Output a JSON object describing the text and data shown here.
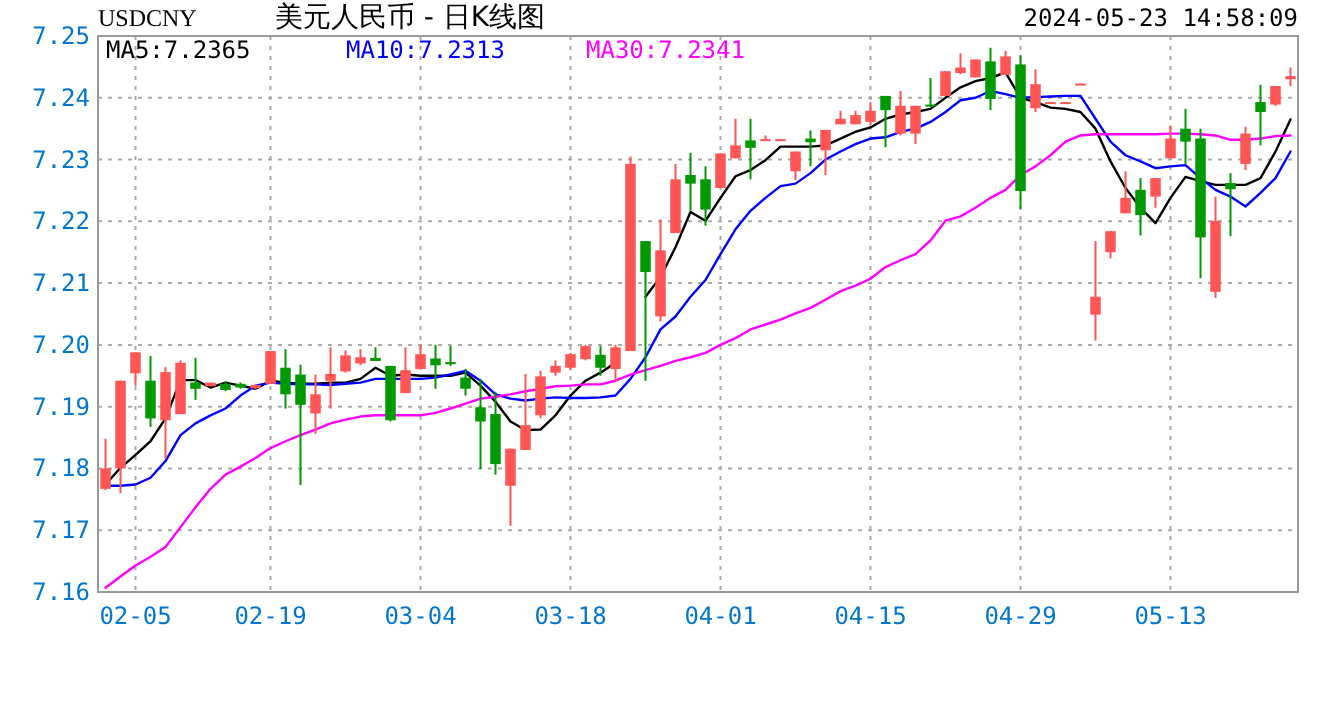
{
  "chart_data": {
    "type": "candlestick",
    "title": "美元人民币 - 日K线图",
    "subtitle": "USDCNY",
    "annotations": [
      "2024-05-23 14:58:09"
    ],
    "categories": [
      null,
      null,
      "02-05",
      null,
      null,
      null,
      null,
      null,
      null,
      null,
      null,
      "02-19",
      null,
      null,
      null,
      null,
      null,
      null,
      null,
      null,
      null,
      "03-04",
      null,
      null,
      null,
      null,
      null,
      null,
      null,
      null,
      null,
      "03-18",
      null,
      null,
      null,
      null,
      null,
      null,
      null,
      null,
      null,
      "04-01",
      null,
      null,
      null,
      null,
      null,
      null,
      null,
      null,
      null,
      "04-15",
      null,
      null,
      null,
      null,
      null,
      null,
      null,
      null,
      null,
      "04-29",
      null,
      null,
      null,
      null,
      null,
      null,
      null,
      null,
      null,
      "05-13",
      null,
      null,
      null,
      null,
      null,
      null,
      null,
      null
    ],
    "ohlc": [
      [
        7.1767,
        7.1848,
        7.1765,
        7.18
      ],
      [
        7.18,
        7.1942,
        7.176,
        7.1942
      ],
      [
        7.1954,
        7.1988,
        7.1934,
        7.1988
      ],
      [
        7.1942,
        7.1982,
        7.1867,
        7.1881
      ],
      [
        7.1878,
        7.1964,
        7.1816,
        7.1956
      ],
      [
        7.1888,
        7.1975,
        7.1888,
        7.1971
      ],
      [
        7.1939,
        7.1979,
        7.1911,
        7.1929
      ],
      [
        7.1933,
        7.1939,
        7.1933,
        7.1939
      ],
      [
        7.1937,
        7.1941,
        7.1925,
        7.1927
      ],
      [
        7.1937,
        7.1939,
        7.1929,
        7.1931
      ],
      [
        7.193,
        7.1937,
        7.1928,
        7.1935
      ],
      [
        7.1937,
        7.199,
        7.1937,
        7.199
      ],
      [
        7.1963,
        7.1993,
        7.1897,
        7.192
      ],
      [
        7.1952,
        7.1968,
        7.1773,
        7.1903
      ],
      [
        7.1889,
        7.1952,
        7.1856,
        7.192
      ],
      [
        7.1942,
        7.1996,
        7.1897,
        7.1953
      ],
      [
        7.1957,
        7.1991,
        7.1955,
        7.1983
      ],
      [
        7.197,
        7.1993,
        7.1967,
        7.198
      ],
      [
        7.1979,
        7.1996,
        7.1974,
        7.1974
      ],
      [
        7.1966,
        7.1966,
        7.1876,
        7.1878
      ],
      [
        7.1922,
        7.1996,
        7.1922,
        7.1959
      ],
      [
        7.1961,
        7.2,
        7.1961,
        7.1985
      ],
      [
        7.1978,
        7.2,
        7.1929,
        7.1967
      ],
      [
        7.1972,
        7.1998,
        7.1966,
        7.197
      ],
      [
        7.1947,
        7.1961,
        7.1918,
        7.1929
      ],
      [
        7.1899,
        7.1945,
        7.1799,
        7.1876
      ],
      [
        7.1888,
        7.1924,
        7.179,
        7.1807
      ],
      [
        7.1772,
        7.1832,
        7.1707,
        7.1832
      ],
      [
        7.183,
        7.1953,
        7.183,
        7.187
      ],
      [
        7.1886,
        7.1958,
        7.1881,
        7.1949
      ],
      [
        7.1955,
        7.1975,
        7.195,
        7.1966
      ],
      [
        7.1963,
        7.1987,
        7.1959,
        7.1985
      ],
      [
        7.1977,
        7.2,
        7.1975,
        7.1998
      ],
      [
        7.1984,
        7.1998,
        7.195,
        7.1963
      ],
      [
        7.1961,
        7.2,
        7.1942,
        7.1996
      ],
      [
        7.199,
        7.2305,
        7.199,
        7.2293
      ],
      [
        7.2168,
        7.2168,
        7.1942,
        7.2118
      ],
      [
        7.2046,
        7.2203,
        7.2038,
        7.2153
      ],
      [
        7.2181,
        7.2293,
        7.2181,
        7.2268
      ],
      [
        7.2275,
        7.2311,
        7.2217,
        7.2261
      ],
      [
        7.2268,
        7.2289,
        7.2193,
        7.2219
      ],
      [
        7.2254,
        7.231,
        7.2254,
        7.231
      ],
      [
        7.2302,
        7.2366,
        7.2302,
        7.2323
      ],
      [
        7.2331,
        7.2366,
        7.2268,
        7.2319
      ],
      [
        7.2331,
        7.2339,
        7.2331,
        7.2333
      ],
      [
        7.2331,
        7.2333,
        7.2331,
        7.2333
      ],
      [
        7.2281,
        7.2313,
        7.2267,
        7.2313
      ],
      [
        7.2334,
        7.2347,
        7.2289,
        7.2328
      ],
      [
        7.2315,
        7.2348,
        7.2275,
        7.2348
      ],
      [
        7.2357,
        7.2379,
        7.2357,
        7.2366
      ],
      [
        7.2357,
        7.2379,
        7.2357,
        7.2372
      ],
      [
        7.2361,
        7.2393,
        7.2355,
        7.2379
      ],
      [
        7.2403,
        7.2403,
        7.232,
        7.238
      ],
      [
        7.2342,
        7.2411,
        7.2339,
        7.2387
      ],
      [
        7.2342,
        7.2387,
        7.2325,
        7.2387
      ],
      [
        7.2389,
        7.2432,
        7.2385,
        7.2386
      ],
      [
        7.2403,
        7.2443,
        7.2403,
        7.2443
      ],
      [
        7.244,
        7.2472,
        7.2438,
        7.2449
      ],
      [
        7.2433,
        7.2462,
        7.2433,
        7.2462
      ],
      [
        7.2459,
        7.2481,
        7.238,
        7.2398
      ],
      [
        7.2437,
        7.2476,
        7.2437,
        7.2467
      ],
      [
        7.2454,
        7.2469,
        7.222,
        7.2249
      ],
      [
        7.2383,
        7.2446,
        7.2377,
        7.2422
      ],
      [
        7.2393,
        7.2393,
        7.2393,
        7.2393
      ],
      [
        7.2393,
        7.2393,
        7.2393,
        7.2393
      ],
      [
        7.2421,
        7.2423,
        7.2421,
        7.2423
      ],
      [
        7.2049,
        7.2168,
        7.2007,
        7.2078
      ],
      [
        7.215,
        7.2184,
        7.214,
        7.2184
      ],
      [
        7.2213,
        7.2281,
        7.2213,
        7.2238
      ],
      [
        7.2251,
        7.227,
        7.2177,
        7.221
      ],
      [
        7.224,
        7.227,
        7.2222,
        7.227
      ],
      [
        7.2302,
        7.2355,
        7.2302,
        7.2334
      ],
      [
        7.235,
        7.2382,
        7.2293,
        7.2329
      ],
      [
        7.2334,
        7.235,
        7.2108,
        7.2174
      ],
      [
        7.2086,
        7.224,
        7.2076,
        7.2201
      ],
      [
        7.2262,
        7.2278,
        7.2176,
        7.2252
      ],
      [
        7.2293,
        7.2353,
        7.2283,
        7.2342
      ],
      [
        7.2393,
        7.2421,
        7.2323,
        7.2377
      ],
      [
        7.2389,
        7.2419,
        7.2387,
        7.2419
      ],
      [
        7.243,
        7.2449,
        7.2419,
        7.2435
      ]
    ],
    "colors": [
      "#ff5555",
      "#ff5555",
      "#ff5555",
      "#009900",
      "#ff5555",
      "#ff5555",
      "#009900",
      "#ff5555",
      "#009900",
      "#009900",
      "#ff5555",
      "#ff5555",
      "#009900",
      "#009900",
      "#ff5555",
      "#ff5555",
      "#ff5555",
      "#ff5555",
      "#009900",
      "#009900",
      "#ff5555",
      "#ff5555",
      "#009900",
      "#009900",
      "#009900",
      "#009900",
      "#009900",
      "#ff5555",
      "#ff5555",
      "#ff5555",
      "#ff5555",
      "#ff5555",
      "#ff5555",
      "#009900",
      "#ff5555",
      "#ff5555",
      "#009900",
      "#ff5555",
      "#ff5555",
      "#009900",
      "#009900",
      "#ff5555",
      "#ff5555",
      "#009900",
      "#ff5555",
      "#ff5555",
      "#ff5555",
      "#009900",
      "#ff5555",
      "#ff5555",
      "#ff5555",
      "#ff5555",
      "#009900",
      "#ff5555",
      "#ff5555",
      "#009900",
      "#ff5555",
      "#ff5555",
      "#ff5555",
      "#009900",
      "#ff5555",
      "#009900",
      "#ff5555",
      "#ff5555",
      "#ff5555",
      "#ff5555",
      "#ff5555",
      "#ff5555",
      "#ff5555",
      "#009900",
      "#ff5555",
      "#ff5555",
      "#009900",
      "#009900",
      "#ff5555",
      "#009900",
      "#ff5555",
      "#009900",
      "#ff5555",
      "#ff5555"
    ],
    "series": [
      {
        "name": "MA5:7.2365",
        "type": "line",
        "color": "#000000",
        "values": [
          7.1774,
          7.1801,
          7.1822,
          7.1844,
          7.1881,
          7.1943,
          7.1943,
          7.1931,
          7.1939,
          7.1934,
          7.1929,
          7.1942,
          7.1939,
          7.1937,
          7.1937,
          7.1939,
          7.1939,
          7.1945,
          7.1963,
          7.195,
          7.1952,
          7.195,
          7.195,
          7.195,
          7.1955,
          7.1934,
          7.1908,
          7.1876,
          7.1862,
          7.1863,
          7.1886,
          7.1918,
          7.1942,
          7.1955,
          7.1971,
          null,
          7.2078,
          7.211,
          7.2158,
          7.2215,
          7.2201,
          7.2238,
          7.2273,
          7.2283,
          7.2299,
          7.2321,
          7.2321,
          7.2321,
          7.2323,
          7.2334,
          7.2345,
          7.2352,
          7.2366,
          7.2373,
          7.2377,
          7.2382,
          7.24,
          7.2417,
          7.2427,
          7.2432,
          7.2441,
          7.24,
          7.2393,
          7.2384,
          7.2382,
          7.2377,
          7.235,
          7.2297,
          7.2254,
          7.2222,
          7.2197,
          7.2238,
          7.2272,
          7.2265,
          7.2259,
          7.2259,
          7.2259,
          7.227,
          7.2313,
          7.2365
        ]
      },
      {
        "name": "MA10:7.2313",
        "type": "line",
        "color": "#0000ff",
        "values": [
          7.1772,
          7.1772,
          7.1774,
          7.1785,
          7.1812,
          7.1854,
          7.1873,
          7.1886,
          7.1897,
          7.1918,
          7.1934,
          7.1939,
          7.1937,
          7.1936,
          7.1936,
          7.1935,
          7.1937,
          7.1939,
          7.1945,
          7.1945,
          7.1945,
          7.1945,
          7.1947,
          7.1952,
          7.1958,
          7.1942,
          7.192,
          7.1913,
          7.191,
          7.1913,
          7.1915,
          7.1914,
          7.1914,
          7.1915,
          7.1918,
          7.1945,
          7.198,
          7.2025,
          7.2046,
          7.2078,
          7.2105,
          7.2147,
          7.2187,
          7.2217,
          7.2238,
          7.2257,
          7.2261,
          7.2278,
          7.23,
          7.2313,
          7.2325,
          7.2334,
          7.2336,
          7.2345,
          7.235,
          7.2361,
          7.2377,
          7.2396,
          7.24,
          7.2411,
          7.2406,
          7.24,
          7.2401,
          7.2402,
          7.2403,
          7.2403,
          7.2366,
          7.2329,
          7.2307,
          7.2297,
          7.2286,
          7.2289,
          7.2291,
          7.227,
          7.2251,
          7.224,
          7.2224,
          7.2246,
          7.227,
          7.2313
        ]
      },
      {
        "name": "MA30:7.2341",
        "type": "line",
        "color": "#ff00ff",
        "values": [
          7.1607,
          7.1625,
          7.1643,
          7.1657,
          7.1673,
          7.1705,
          7.1737,
          7.1767,
          7.179,
          7.1803,
          7.1817,
          7.1833,
          7.1844,
          7.1854,
          7.1863,
          7.1873,
          7.1879,
          7.1884,
          7.1886,
          7.1886,
          7.1886,
          7.1886,
          7.189,
          7.1897,
          7.1905,
          7.1913,
          7.1916,
          7.192,
          7.1925,
          7.1929,
          7.1933,
          7.1934,
          7.1936,
          7.1936,
          7.1942,
          7.1952,
          7.1959,
          7.1966,
          7.1974,
          7.198,
          7.1987,
          7.2,
          7.2011,
          7.2025,
          7.2033,
          7.2041,
          7.2051,
          7.206,
          7.2073,
          7.2087,
          7.2096,
          7.2107,
          7.2126,
          7.2137,
          7.2147,
          7.2169,
          7.2201,
          7.2208,
          7.2222,
          7.2238,
          7.2251,
          7.2275,
          7.2289,
          7.2307,
          7.2329,
          7.2339,
          7.2341,
          7.2341,
          7.2341,
          7.2341,
          7.2341,
          7.2342,
          7.2342,
          7.2341,
          7.2339,
          7.2332,
          7.2332,
          7.2334,
          7.2338,
          7.2339
        ]
      }
    ],
    "ylim": [
      7.16,
      7.25
    ],
    "yticks": [
      7.16,
      7.17,
      7.18,
      7.19,
      {
        "value": 7.2,
        "label": "7.20"
      },
      7.21,
      7.22,
      7.23,
      7.24,
      7.25
    ],
    "grid": true,
    "legend": "top left"
  }
}
